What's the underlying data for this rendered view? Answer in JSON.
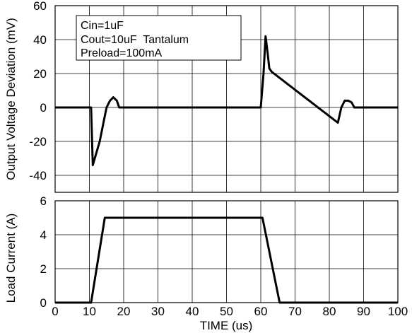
{
  "chart_data": [
    {
      "type": "line",
      "panel": "top",
      "xlabel": "",
      "ylabel": "Output Voltage Deviation (mV)",
      "xlim": [
        0,
        100
      ],
      "ylim": [
        -50,
        60
      ],
      "x_ticks": [
        0,
        10,
        20,
        30,
        40,
        50,
        60,
        70,
        80,
        90,
        100
      ],
      "y_ticks": [
        60,
        40,
        20,
        0,
        -20,
        -40
      ],
      "y_tick_labels": [
        "60",
        "40",
        "20",
        "0",
        "-20",
        "-40"
      ],
      "grid": true,
      "annotation_lines": [
        "Cin=1uF",
        "Cout=10uF  Tantalum",
        "Preload=100mA"
      ],
      "series": [
        {
          "color": "#000000",
          "x": [
            0,
            10.5,
            11,
            12,
            13,
            14,
            15,
            16,
            17,
            18,
            18.7,
            19.5,
            60,
            60.8,
            61.4,
            62,
            62.5,
            63.2,
            82.5,
            83.5,
            84.5,
            85.5,
            86.5,
            87.3,
            88,
            100
          ],
          "y": [
            0,
            0,
            -34,
            -27,
            -20,
            -10,
            0,
            4,
            6,
            4,
            0,
            0,
            0,
            20,
            42,
            32,
            23,
            21,
            -9,
            0,
            4,
            4,
            3,
            0,
            0,
            0
          ]
        }
      ]
    },
    {
      "type": "line",
      "panel": "bottom",
      "xlabel": "TIME (us)",
      "ylabel": "Load Current (A)",
      "xlim": [
        0,
        100
      ],
      "ylim": [
        0,
        6
      ],
      "x_ticks": [
        0,
        10,
        20,
        30,
        40,
        50,
        60,
        70,
        80,
        90,
        100
      ],
      "x_tick_labels": [
        "0",
        "10",
        "20",
        "30",
        "40",
        "50",
        "60",
        "70",
        "80",
        "90",
        "100"
      ],
      "y_ticks": [
        0,
        2,
        4,
        6
      ],
      "y_tick_labels": [
        "0",
        "2",
        "4",
        "6"
      ],
      "grid": true,
      "series": [
        {
          "color": "#000000",
          "x": [
            0,
            10.5,
            14.5,
            60.5,
            65.5,
            100
          ],
          "y": [
            0,
            0,
            5,
            5,
            0,
            0
          ]
        }
      ]
    }
  ]
}
